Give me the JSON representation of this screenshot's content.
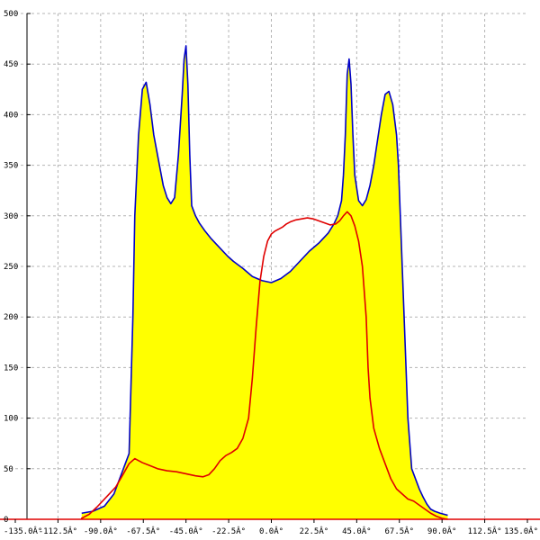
{
  "chart_data": {
    "type": "area",
    "title": "",
    "xlabel": "",
    "ylabel": "",
    "xlim": [
      -135,
      135
    ],
    "ylim": [
      0,
      500
    ],
    "grid": true,
    "x_ticks": [
      -135,
      -112.5,
      -90,
      -67.5,
      -45,
      -22.5,
      0,
      22.5,
      45,
      67.5,
      90,
      112.5,
      135
    ],
    "x_tick_labels": [
      "-135.0Â°",
      "-112.5Â°",
      "-90.0Â°",
      "-67.5Â°",
      "-45.0Â°",
      "-22.5Â°",
      "0.0Â°",
      "22.5Â°",
      "45.0Â°",
      "67.5Â°",
      "90.0Â°",
      "112.5Â°",
      "135.0Â°"
    ],
    "y_ticks": [
      0,
      50,
      100,
      150,
      200,
      250,
      300,
      350,
      400,
      450,
      500
    ],
    "y_tick_labels": [
      "0",
      "50",
      "100",
      "150",
      "200",
      "250",
      "300",
      "350",
      "400",
      "450",
      "500"
    ],
    "series": [
      {
        "color": "#0000c8",
        "fill": "#ffff00",
        "points": [
          [
            -100,
            0
          ],
          [
            -100,
            6
          ],
          [
            -94,
            8
          ],
          [
            -88,
            13
          ],
          [
            -83,
            25
          ],
          [
            -80,
            40
          ],
          [
            -77,
            55
          ],
          [
            -75,
            65
          ],
          [
            -73,
            200
          ],
          [
            -72,
            300
          ],
          [
            -70,
            380
          ],
          [
            -68,
            425
          ],
          [
            -66,
            432
          ],
          [
            -64,
            410
          ],
          [
            -62,
            380
          ],
          [
            -59,
            350
          ],
          [
            -57,
            330
          ],
          [
            -55,
            318
          ],
          [
            -53,
            312
          ],
          [
            -51,
            318
          ],
          [
            -49,
            360
          ],
          [
            -47,
            420
          ],
          [
            -46,
            455
          ],
          [
            -45,
            468
          ],
          [
            -44,
            430
          ],
          [
            -43,
            360
          ],
          [
            -42,
            310
          ],
          [
            -40,
            300
          ],
          [
            -38,
            293
          ],
          [
            -35,
            285
          ],
          [
            -32,
            278
          ],
          [
            -29,
            272
          ],
          [
            -26,
            266
          ],
          [
            -23,
            260
          ],
          [
            -20,
            255
          ],
          [
            -15,
            248
          ],
          [
            -10,
            240
          ],
          [
            -5,
            236
          ],
          [
            0,
            234
          ],
          [
            5,
            238
          ],
          [
            10,
            245
          ],
          [
            15,
            255
          ],
          [
            20,
            265
          ],
          [
            25,
            273
          ],
          [
            30,
            283
          ],
          [
            33,
            292
          ],
          [
            35,
            300
          ],
          [
            37,
            315
          ],
          [
            38,
            340
          ],
          [
            39,
            380
          ],
          [
            40,
            440
          ],
          [
            41,
            455
          ],
          [
            42,
            430
          ],
          [
            43,
            380
          ],
          [
            44,
            340
          ],
          [
            46,
            315
          ],
          [
            48,
            310
          ],
          [
            50,
            316
          ],
          [
            52,
            330
          ],
          [
            54,
            350
          ],
          [
            56,
            375
          ],
          [
            58,
            400
          ],
          [
            60,
            420
          ],
          [
            62,
            423
          ],
          [
            64,
            410
          ],
          [
            66,
            380
          ],
          [
            67,
            350
          ],
          [
            68,
            300
          ],
          [
            69,
            250
          ],
          [
            70,
            200
          ],
          [
            71,
            150
          ],
          [
            72,
            100
          ],
          [
            74,
            50
          ],
          [
            76,
            40
          ],
          [
            78,
            30
          ],
          [
            80,
            22
          ],
          [
            82,
            15
          ],
          [
            84,
            10
          ],
          [
            86,
            8
          ],
          [
            89,
            6
          ],
          [
            91,
            5
          ],
          [
            93,
            4
          ],
          [
            93,
            0
          ]
        ]
      },
      {
        "color": "#e00000",
        "points": [
          [
            -100,
            0
          ],
          [
            -100,
            1
          ],
          [
            -96,
            5
          ],
          [
            -92,
            12
          ],
          [
            -88,
            20
          ],
          [
            -84,
            28
          ],
          [
            -82,
            32
          ],
          [
            -78,
            45
          ],
          [
            -75,
            55
          ],
          [
            -72,
            60
          ],
          [
            -68,
            56
          ],
          [
            -64,
            53
          ],
          [
            -60,
            50
          ],
          [
            -55,
            48
          ],
          [
            -50,
            47
          ],
          [
            -45,
            45
          ],
          [
            -40,
            43
          ],
          [
            -36,
            42
          ],
          [
            -33,
            44
          ],
          [
            -30,
            50
          ],
          [
            -27,
            58
          ],
          [
            -24,
            63
          ],
          [
            -21,
            66
          ],
          [
            -18,
            70
          ],
          [
            -15,
            80
          ],
          [
            -12,
            100
          ],
          [
            -10,
            140
          ],
          [
            -8,
            190
          ],
          [
            -6,
            235
          ],
          [
            -4,
            260
          ],
          [
            -2,
            275
          ],
          [
            0,
            282
          ],
          [
            2,
            285
          ],
          [
            4,
            287
          ],
          [
            6,
            289
          ],
          [
            8,
            292
          ],
          [
            10,
            294
          ],
          [
            13,
            296
          ],
          [
            16,
            297
          ],
          [
            19,
            298
          ],
          [
            22,
            297
          ],
          [
            25,
            295
          ],
          [
            28,
            293
          ],
          [
            31,
            291
          ],
          [
            34,
            292
          ],
          [
            36,
            295
          ],
          [
            38,
            300
          ],
          [
            40,
            304
          ],
          [
            42,
            300
          ],
          [
            44,
            290
          ],
          [
            46,
            275
          ],
          [
            48,
            250
          ],
          [
            50,
            200
          ],
          [
            51,
            150
          ],
          [
            52,
            120
          ],
          [
            54,
            90
          ],
          [
            57,
            70
          ],
          [
            60,
            55
          ],
          [
            63,
            40
          ],
          [
            66,
            30
          ],
          [
            69,
            25
          ],
          [
            72,
            20
          ],
          [
            75,
            18
          ],
          [
            78,
            14
          ],
          [
            81,
            10
          ],
          [
            84,
            6
          ],
          [
            87,
            3
          ],
          [
            90,
            1
          ],
          [
            93,
            0
          ]
        ]
      }
    ]
  }
}
